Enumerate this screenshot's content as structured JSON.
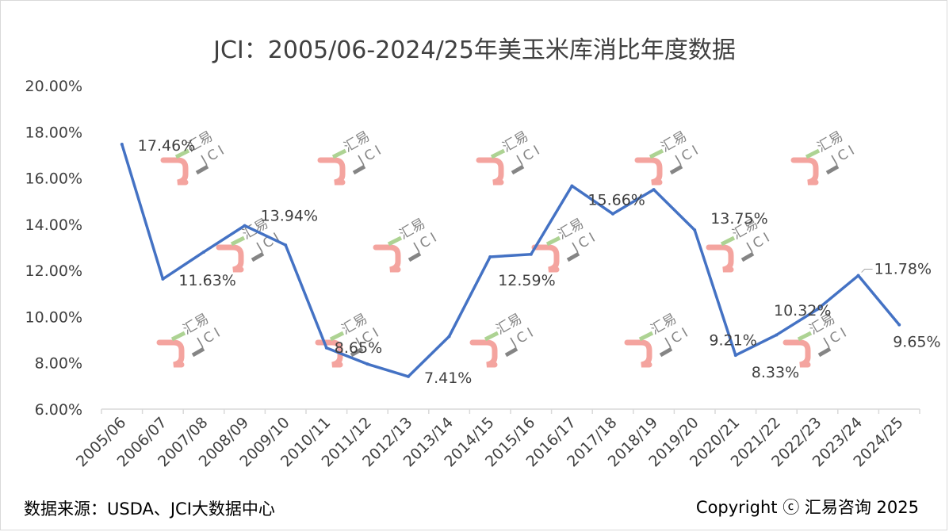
{
  "title": "JCI：2005/06-2024/25年美玉米库消比年度数据",
  "footer": {
    "source": "数据来源：USDA、JCI大数据中心",
    "copyright": "Copyright ⓒ 汇易咨询 2025"
  },
  "watermark": {
    "text": "汇易 JCI"
  },
  "colors": {
    "line": "#4472c4",
    "grid": "#d9d9d9",
    "watermark_logo": "#f4a09a",
    "watermark_green": "#a9d18e"
  },
  "chart_data": {
    "type": "line",
    "title": "JCI：2005/06-2024/25年美玉米库消比年度数据",
    "categories": [
      "2005/06",
      "2006/07",
      "2007/08",
      "2008/09",
      "2009/10",
      "2010/11",
      "2011/12",
      "2012/13",
      "2013/14",
      "2014/15",
      "2015/16",
      "2016/17",
      "2017/18",
      "2018/19",
      "2019/20",
      "2020/21",
      "2021/22",
      "2022/23",
      "2023/24",
      "2024/25"
    ],
    "series": [
      {
        "values": [
          17.46,
          11.63,
          12.8,
          13.94,
          13.1,
          8.65,
          7.95,
          7.41,
          9.15,
          12.59,
          12.7,
          15.66,
          14.45,
          15.5,
          13.75,
          8.33,
          9.21,
          10.32,
          11.78,
          9.65
        ]
      }
    ],
    "data_labels": [
      {
        "index": 0,
        "text": "17.46%"
      },
      {
        "index": 1,
        "text": "11.63%"
      },
      {
        "index": 3,
        "text": "13.94%"
      },
      {
        "index": 5,
        "text": "8.65%"
      },
      {
        "index": 7,
        "text": "7.41%"
      },
      {
        "index": 9,
        "text": "12.59%"
      },
      {
        "index": 11,
        "text": "15.66%"
      },
      {
        "index": 14,
        "text": "13.75%"
      },
      {
        "index": 15,
        "text": "8.33%"
      },
      {
        "index": 16,
        "text": "9.21%"
      },
      {
        "index": 17,
        "text": "10.32%"
      },
      {
        "index": 18,
        "text": "11.78%"
      },
      {
        "index": 19,
        "text": "9.65%"
      }
    ],
    "yticks": [
      "6.00%",
      "8.00%",
      "10.00%",
      "12.00%",
      "14.00%",
      "16.00%",
      "18.00%",
      "20.00%"
    ],
    "ylim": [
      6,
      20
    ],
    "grid": false,
    "legend": "none"
  }
}
